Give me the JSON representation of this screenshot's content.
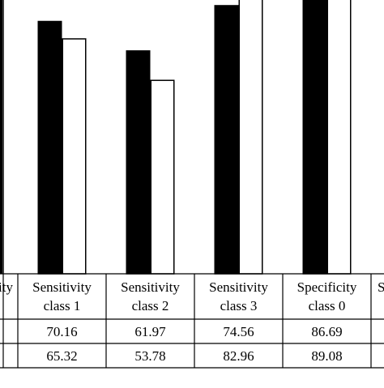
{
  "chart_data": {
    "type": "bar",
    "categories": [
      {
        "line1": "ity",
        "line2": "",
        "cropped": true
      },
      {
        "line1": "Sensitivity",
        "line2": "class 1"
      },
      {
        "line1": "Sensitivity",
        "line2": "class 2"
      },
      {
        "line1": "Sensitivity",
        "line2": "class 3"
      },
      {
        "line1": "Specificity",
        "line2": "class 0"
      },
      {
        "line1": "S",
        "line2": "",
        "cropped": true
      }
    ],
    "series": [
      {
        "fill": "#000000",
        "values": [
          null,
          70.16,
          61.97,
          74.56,
          86.69,
          null
        ],
        "labels": [
          "",
          "70.16",
          "61.97",
          "74.56",
          "86.69",
          ""
        ]
      },
      {
        "fill": "#ffffff",
        "values": [
          null,
          65.32,
          53.78,
          82.96,
          89.08,
          null
        ],
        "labels": [
          "",
          "65.32",
          "53.78",
          "82.96",
          "89.08",
          ""
        ]
      }
    ],
    "partial_bar": {
      "series": 0,
      "category": 0,
      "approx_value": 86
    },
    "grid": false,
    "title": "",
    "xlabel": "",
    "ylabel": ""
  }
}
